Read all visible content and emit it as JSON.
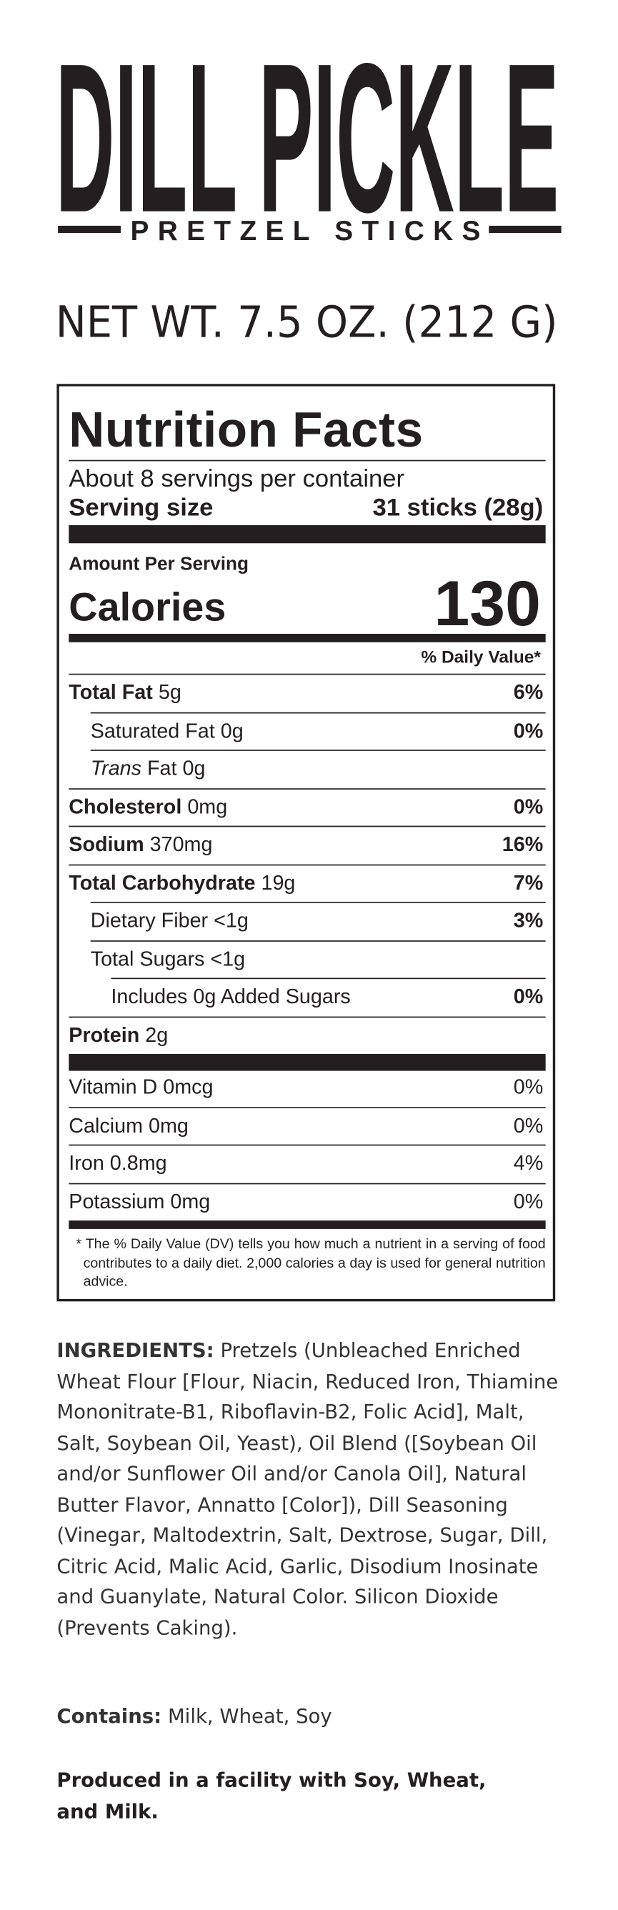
{
  "header": {
    "title": "DILL PICKLE",
    "subtitle": "PRETZEL STICKS",
    "net_weight": "NET WT. 7.5 OZ. (212 G)"
  },
  "nutrition": {
    "title": "Nutrition Facts",
    "servings": "About 8 servings per container",
    "serving_size_label": "Serving size",
    "serving_size_value": "31 sticks (28g)",
    "amount_label": "Amount Per Serving",
    "calories_label": "Calories",
    "calories": 130,
    "dv_header": "% Daily Value*",
    "nutrients": [
      {
        "name": "Total Fat",
        "amount": "5g",
        "dv": "6%",
        "bold": true,
        "indent": 0
      },
      {
        "name": "Saturated Fat",
        "amount": "0g",
        "dv": "0%",
        "bold": false,
        "indent": 1
      },
      {
        "name_italic": "Trans",
        "name": "Fat",
        "amount": "0g",
        "bold": false,
        "indent": 1
      },
      {
        "name": "Cholesterol",
        "amount": "0mg",
        "dv": "0%",
        "bold": true,
        "indent": 0
      },
      {
        "name": "Sodium",
        "amount": "370mg",
        "dv": "16%",
        "bold": true,
        "indent": 0
      },
      {
        "name": "Total Carbohydrate",
        "amount": "19g",
        "dv": "7%",
        "bold": true,
        "indent": 0
      },
      {
        "name": "Dietary Fiber",
        "amount": "<1g",
        "dv": "3%",
        "bold": false,
        "indent": 1
      },
      {
        "name": "Total Sugars",
        "amount": "<1g",
        "bold": false,
        "indent": 1
      },
      {
        "name": "Includes 0g Added Sugars",
        "dv": "0%",
        "bold": false,
        "indent": 2
      },
      {
        "name": "Protein",
        "amount": "2g",
        "bold": true,
        "indent": 0
      }
    ],
    "vitamins": [
      {
        "name": "Vitamin D 0mcg",
        "dv": "0%"
      },
      {
        "name": "Calcium 0mg",
        "dv": "0%"
      },
      {
        "name": "Iron 0.8mg",
        "dv": "4%"
      },
      {
        "name": "Potassium 0mg",
        "dv": "0%"
      }
    ],
    "footnote": "* The % Daily Value (DV) tells you how much a nutrient in a serving of food contributes to a daily diet. 2,000 calories a day is used for general nutrition advice."
  },
  "ingredients": {
    "label": "INGREDIENTS:",
    "text": "Pretzels (Unbleached Enriched Wheat Flour [Flour, Niacin, Reduced Iron, Thiamine Mononitrate-B1, Riboflavin-B2, Folic Acid], Malt, Salt, Soybean Oil, Yeast), Oil Blend ([Soybean Oil and/or Sunflower Oil and/or Canola Oil], Natural Butter Flavor, Annatto [Color]), Dill Seasoning (Vinegar, Maltodextrin, Salt, Dextrose, Sugar, Dill, Citric Acid, Malic Acid, Garlic, Disodium Inosinate and Guanylate, Natural Color. Silicon Dioxide (Prevents Caking)."
  },
  "contains": {
    "label": "Contains:",
    "text": "Milk, Wheat, Soy"
  },
  "facility": "Produced in a facility with Soy, Wheat, and Milk."
}
